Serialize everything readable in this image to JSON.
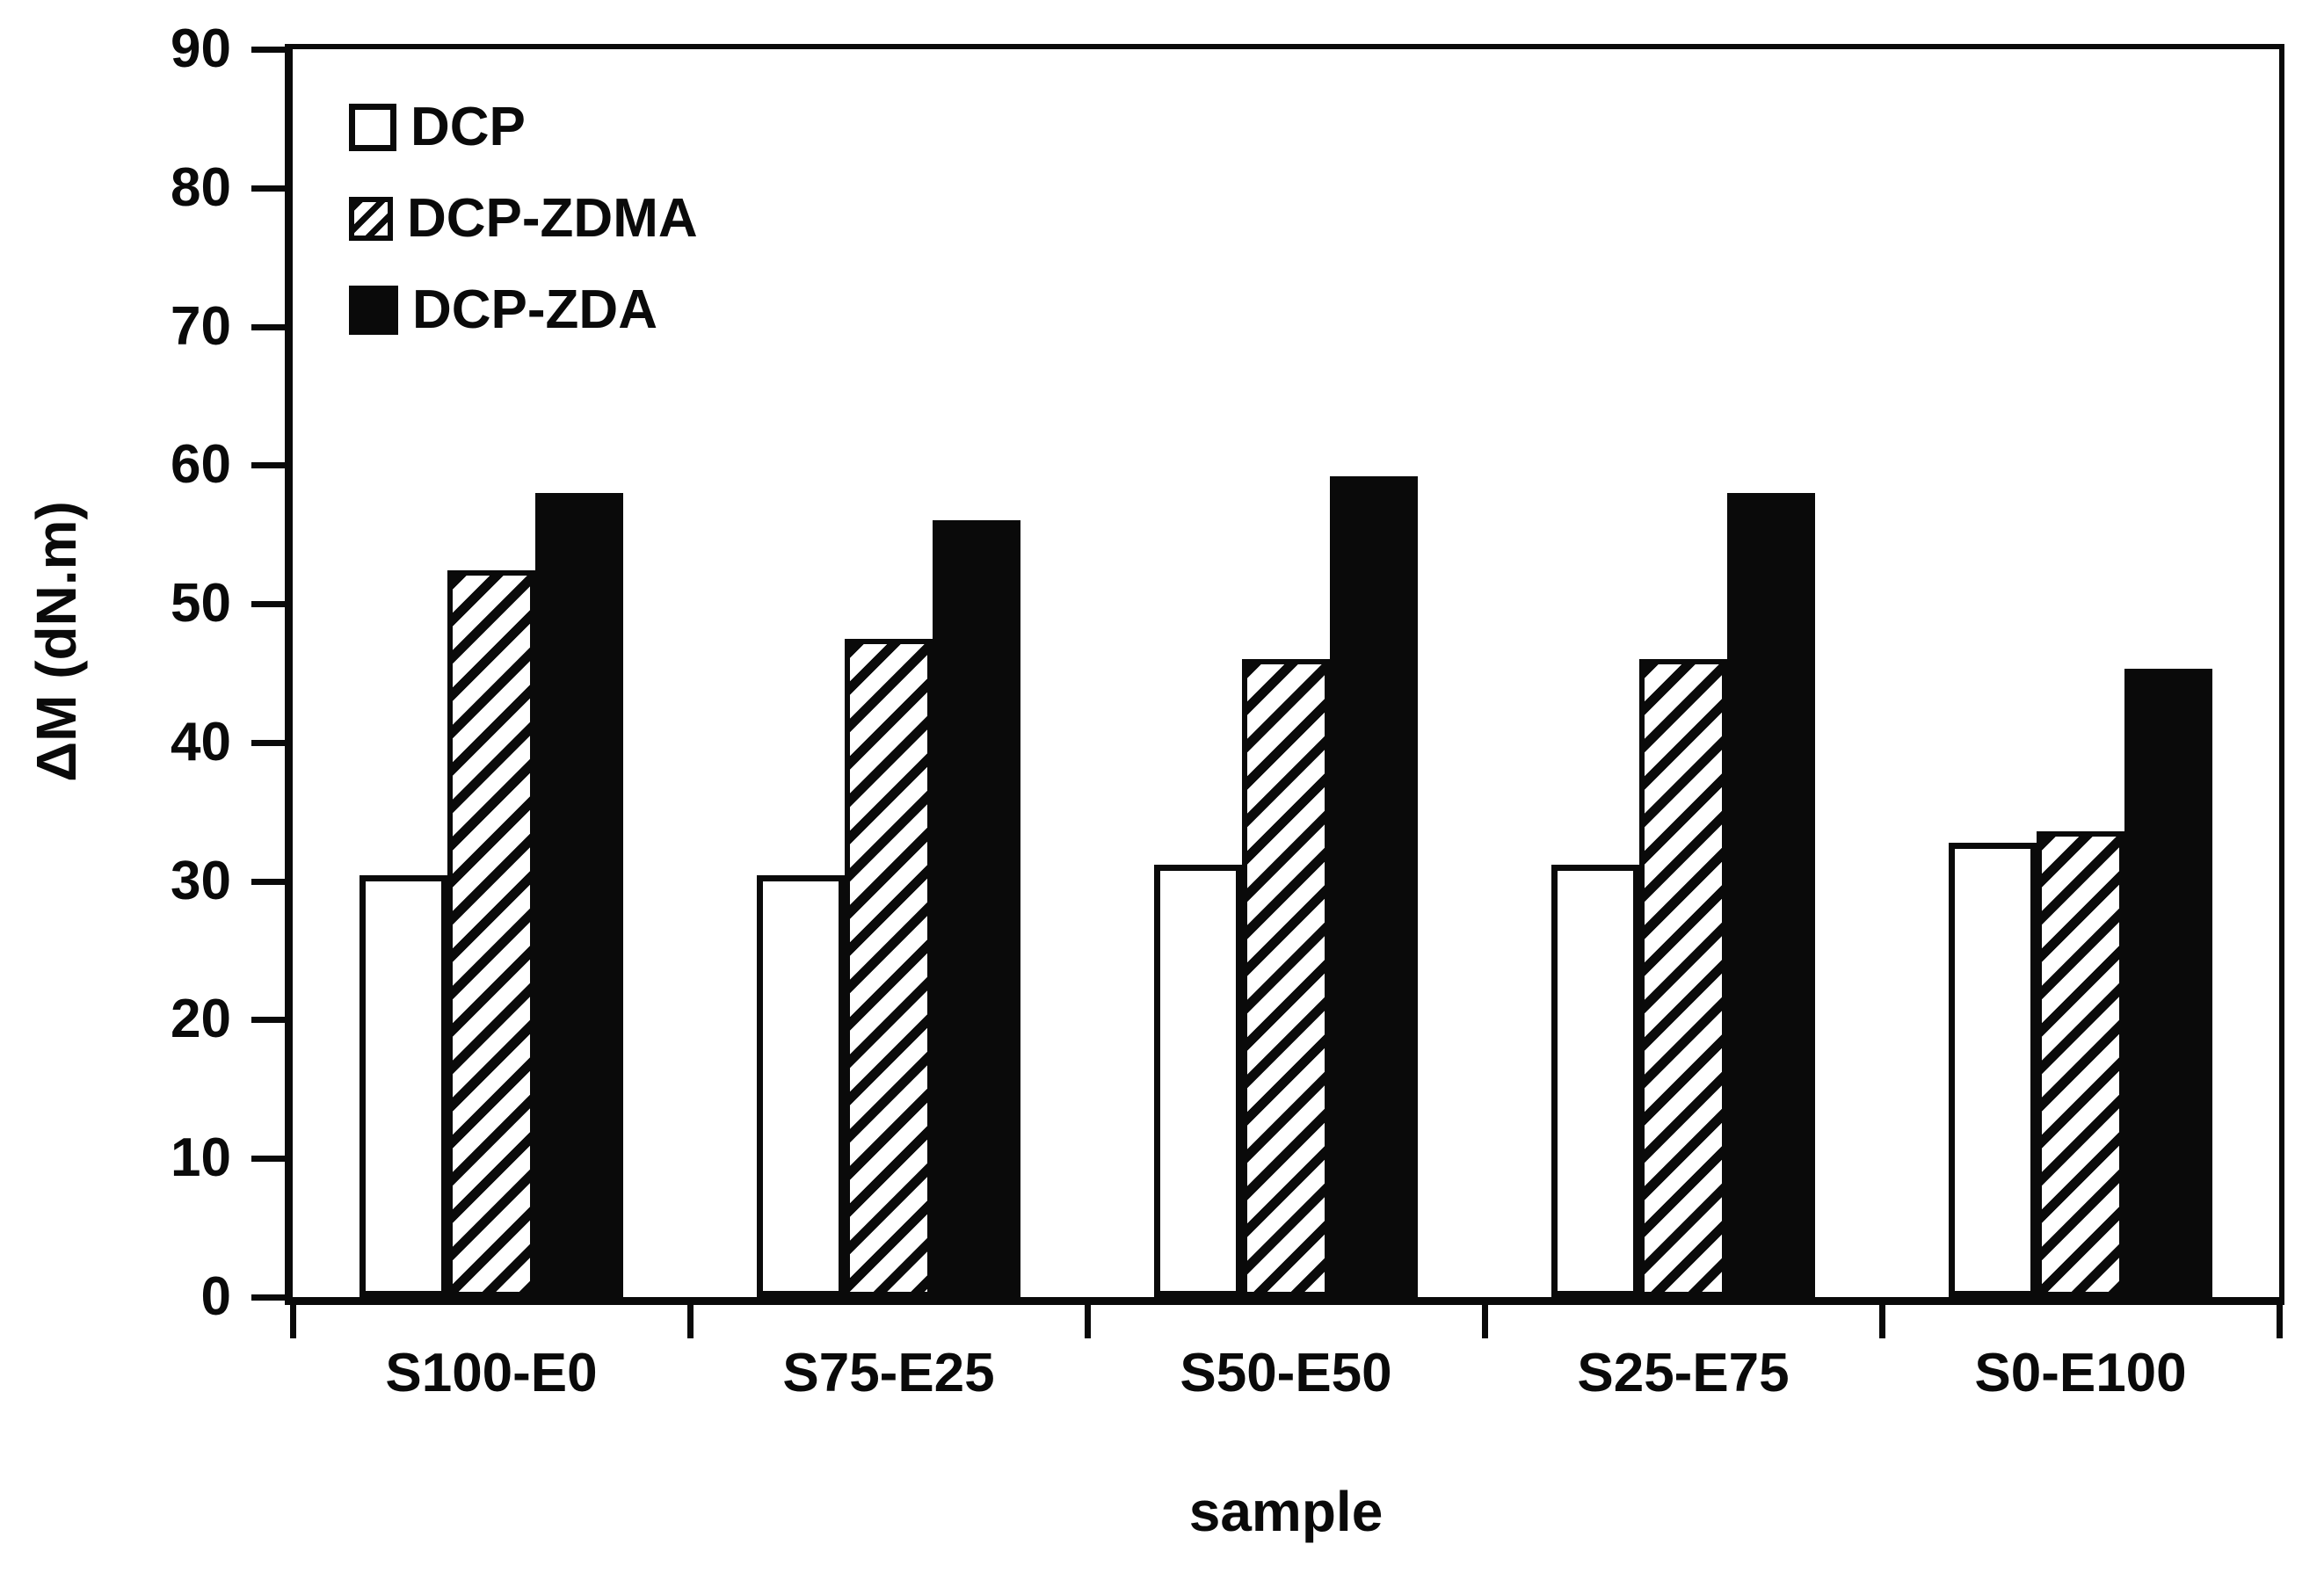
{
  "chart_data": {
    "type": "bar",
    "title": "",
    "xlabel": "sample",
    "ylabel": "ΔM (dN.m)",
    "categories": [
      "S100-E0",
      "S75-E25",
      "S50-E50",
      "S25-E75",
      "S0-E100"
    ],
    "series": [
      {
        "name": "DCP",
        "style": "white",
        "values": [
          30.4,
          30.4,
          31.2,
          31.2,
          32.8
        ]
      },
      {
        "name": "DCP-ZDMA",
        "style": "hatched",
        "values": [
          52.4,
          47.5,
          46.0,
          46.0,
          33.6
        ]
      },
      {
        "name": "DCP-ZDA",
        "style": "black",
        "values": [
          58.0,
          56.0,
          59.2,
          58.0,
          45.3
        ]
      }
    ],
    "ylim": [
      0,
      90
    ],
    "yticks": [
      0,
      10,
      20,
      30,
      40,
      50,
      60,
      70,
      80,
      90
    ],
    "grid": false,
    "legend_position": "top-left",
    "colors": {
      "axis": "#0a0a0a",
      "bar_white_fill": "#ffffff",
      "bar_black_fill": "#0a0a0a",
      "background": "#ffffff"
    }
  }
}
